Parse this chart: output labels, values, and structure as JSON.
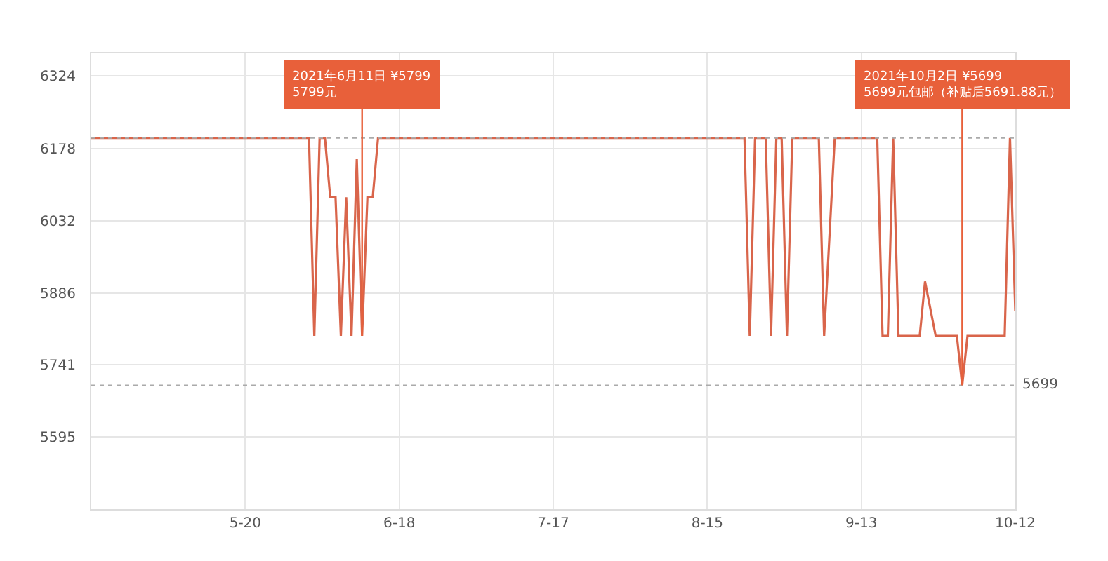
{
  "chart_data": {
    "type": "line",
    "line_style": "solid",
    "marker": "none",
    "grid": true,
    "xlim": [
      "2021-04-21",
      "2021-10-12"
    ],
    "xticks": [
      {
        "value": "2021-05-20",
        "label": "5-20"
      },
      {
        "value": "2021-06-18",
        "label": "6-18"
      },
      {
        "value": "2021-07-17",
        "label": "7-17"
      },
      {
        "value": "2021-08-15",
        "label": "8-15"
      },
      {
        "value": "2021-09-13",
        "label": "9-13"
      },
      {
        "value": "2021-10-12",
        "label": "10-12"
      }
    ],
    "ylim": [
      5449,
      6370
    ],
    "yticks": [
      5595,
      5741,
      5886,
      6032,
      6178,
      6324
    ],
    "series": [
      {
        "color": "#d9654b",
        "x": [
          "2021-04-21",
          "2021-06-01",
          "2021-06-02",
          "2021-06-03",
          "2021-06-04",
          "2021-06-05",
          "2021-06-06",
          "2021-06-07",
          "2021-06-08",
          "2021-06-09",
          "2021-06-10",
          "2021-06-11",
          "2021-06-12",
          "2021-06-13",
          "2021-06-14",
          "2021-08-22",
          "2021-08-23",
          "2021-08-24",
          "2021-08-26",
          "2021-08-27",
          "2021-08-28",
          "2021-08-29",
          "2021-08-30",
          "2021-08-31",
          "2021-09-05",
          "2021-09-06",
          "2021-09-08",
          "2021-09-16",
          "2021-09-17",
          "2021-09-18",
          "2021-09-19",
          "2021-09-20",
          "2021-09-24",
          "2021-09-25",
          "2021-09-27",
          "2021-10-01",
          "2021-10-02",
          "2021-10-03",
          "2021-10-10",
          "2021-10-11",
          "2021-10-12"
        ],
        "values": [
          6199,
          6199,
          5799,
          6199,
          6199,
          6079,
          6079,
          5799,
          6079,
          5799,
          6156,
          5799,
          6079,
          6079,
          6199,
          6199,
          5799,
          6199,
          6199,
          5799,
          6199,
          6199,
          5799,
          6199,
          6199,
          5799,
          6199,
          6199,
          5799,
          5799,
          6199,
          5799,
          5799,
          5909,
          5799,
          5799,
          5699,
          5799,
          5799,
          6199,
          5849
        ]
      }
    ],
    "ref_lines": [
      {
        "axis": "y",
        "value": 6199,
        "label": null,
        "color": "#aaaaaa",
        "line_style": "dotted"
      },
      {
        "axis": "y",
        "value": 5699,
        "label": "5699",
        "color": "#aaaaaa",
        "line_style": "dotted"
      }
    ],
    "annotations": [
      {
        "text": "2021年6月11日 ¥5799\n5799元",
        "x": "2021-06-11",
        "y": 5799
      },
      {
        "text": "2021年10月2日 ¥5699\n5699元包邮（补贴后5691.88元）",
        "x": "2021-10-02",
        "y": 5699
      }
    ]
  }
}
